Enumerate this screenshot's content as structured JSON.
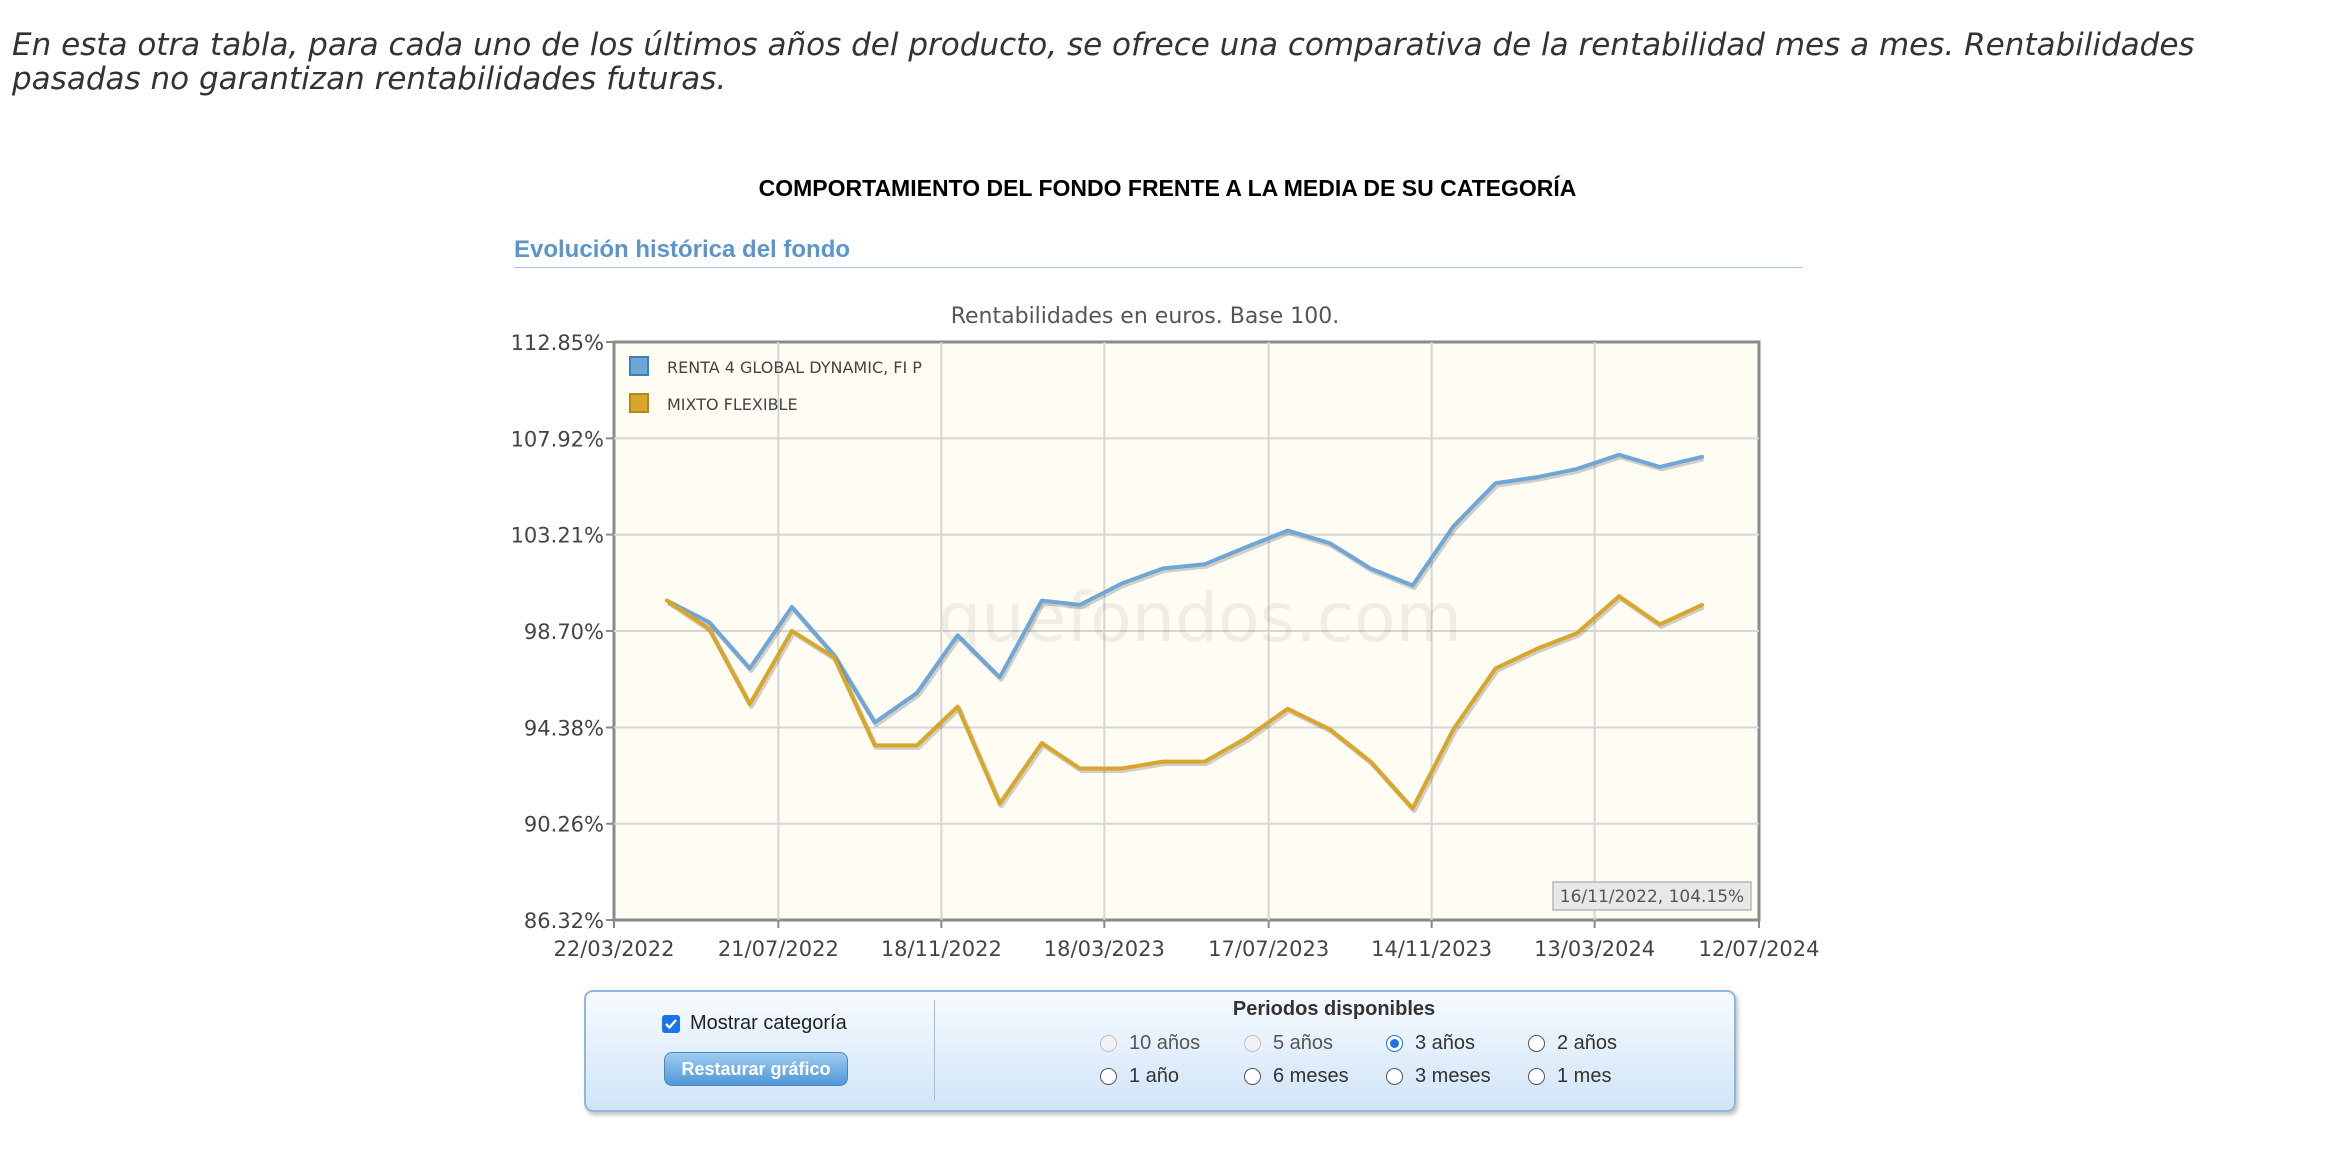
{
  "intro_text": "En esta otra tabla, para cada uno de los últimos años del producto, se ofrece una comparativa de la rentabilidad mes a mes. Rentabilidades pasadas no garantizan rentabilidades futuras.",
  "header": {
    "title": "COMPORTAMIENTO DEL FONDO FRENTE A LA MEDIA DE SU CATEGORÍA",
    "section_title": "Evolución histórica del fondo"
  },
  "chart_data": {
    "type": "line",
    "title": "Rentabilidades en euros. Base 100.",
    "watermark": "quefondos.com",
    "tooltip": "16/11/2022, 104.15%",
    "x_tick_labels": [
      "22/03/2022",
      "21/07/2022",
      "18/11/2022",
      "18/03/2023",
      "17/07/2023",
      "14/11/2023",
      "13/03/2024",
      "12/07/2024"
    ],
    "y_tick_labels": [
      "112.85%",
      "107.92%",
      "103.21%",
      "98.70%",
      "94.38%",
      "90.26%",
      "86.32%"
    ],
    "y_ticks": [
      112.85,
      107.92,
      103.21,
      98.7,
      94.38,
      90.26,
      86.32
    ],
    "y_scale": "log",
    "ylim": [
      86.32,
      112.85
    ],
    "xlim": [
      "2022-03-22",
      "2024-07-12"
    ],
    "grid": true,
    "legend_position": "top-left",
    "x": [
      "2022-04-30",
      "2022-05-31",
      "2022-06-30",
      "2022-07-31",
      "2022-08-31",
      "2022-09-30",
      "2022-10-31",
      "2022-11-30",
      "2022-12-31",
      "2023-01-31",
      "2023-02-28",
      "2023-03-31",
      "2023-04-30",
      "2023-05-31",
      "2023-06-30",
      "2023-07-31",
      "2023-08-31",
      "2023-09-30",
      "2023-10-31",
      "2023-11-30",
      "2023-12-31",
      "2024-01-31",
      "2024-02-29",
      "2024-03-31",
      "2024-04-30",
      "2024-05-31"
    ],
    "series": [
      {
        "name": "RENTA 4 GLOBAL DYNAMIC, FI P",
        "color": "#6ea7d6",
        "values": [
          100.1,
          99.1,
          97.0,
          99.8,
          97.6,
          94.6,
          95.9,
          98.5,
          96.6,
          100.1,
          99.9,
          100.9,
          101.6,
          101.8,
          102.6,
          103.4,
          102.8,
          101.6,
          100.8,
          103.6,
          105.7,
          106.0,
          106.4,
          107.1,
          106.5,
          107.0
        ]
      },
      {
        "name": "MIXTO FLEXIBLE",
        "color": "#d9a62c",
        "values": [
          100.1,
          98.8,
          95.4,
          98.7,
          97.5,
          93.6,
          93.6,
          95.3,
          91.1,
          93.7,
          92.6,
          92.6,
          92.9,
          92.9,
          93.9,
          95.2,
          94.3,
          92.9,
          90.9,
          94.3,
          97.0,
          97.9,
          98.6,
          100.3,
          99.0,
          99.9
        ]
      }
    ]
  },
  "controls": {
    "show_category_label": "Mostrar categoría",
    "show_category_checked": true,
    "restore_button": "Restaurar gráfico",
    "periods_title": "Periodos disponibles",
    "periods": [
      {
        "label": "10 años",
        "disabled": true,
        "selected": false
      },
      {
        "label": "5 años",
        "disabled": true,
        "selected": false
      },
      {
        "label": "3 años",
        "disabled": false,
        "selected": true
      },
      {
        "label": "2 años",
        "disabled": false,
        "selected": false
      },
      {
        "label": "1 año",
        "disabled": false,
        "selected": false
      },
      {
        "label": "6 meses",
        "disabled": false,
        "selected": false
      },
      {
        "label": "3 meses",
        "disabled": false,
        "selected": false
      },
      {
        "label": "1 mes",
        "disabled": false,
        "selected": false
      }
    ]
  }
}
